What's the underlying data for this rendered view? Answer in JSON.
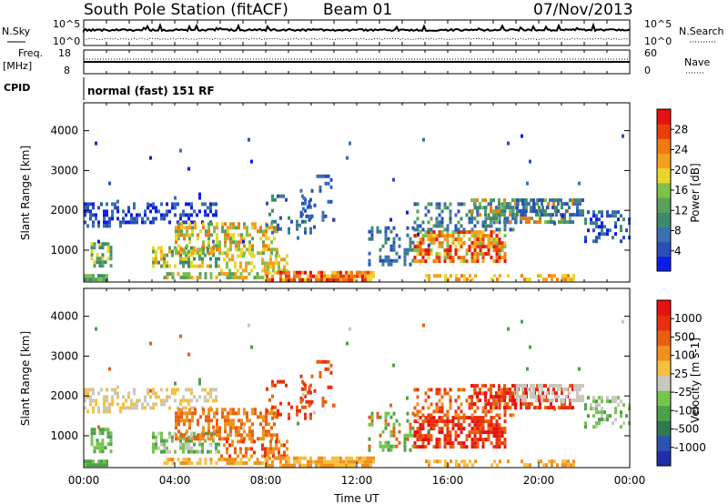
{
  "header": {
    "station": "South Pole Station (fitACF)",
    "beam": "Beam 01",
    "date": "07/Nov/2013"
  },
  "top_panels": {
    "nsky_label": "N.Sky",
    "nsky_ticks": [
      "10^5",
      "10^0"
    ],
    "nsearch_label": "N.Search",
    "nsearch_ticks": [
      "10^5",
      "10^0"
    ],
    "freq_label_1": "Freq.",
    "freq_label_2": "[MHz]",
    "freq_ticks": [
      "18",
      "8"
    ],
    "nave_label": "Nave",
    "nave_ticks": [
      "60",
      "0"
    ],
    "cpid_label": "CPID",
    "cpid_text": "normal (fast) 151 RF"
  },
  "colors": {
    "power_scale": [
      "#0a1ee8",
      "#2a4dbb",
      "#3a6fb0",
      "#3d8a6c",
      "#5aa05c",
      "#7fc04a",
      "#e8d62a",
      "#f5a020",
      "#f07a10",
      "#e84008",
      "#e81010"
    ],
    "velocity_scale": [
      "#1e2ea8",
      "#2a52b0",
      "#2f7a52",
      "#4fa04a",
      "#76c450",
      "#c8c8c0",
      "#f5c040",
      "#f09020",
      "#e86010",
      "#e83010",
      "#e81010"
    ]
  },
  "chart_data": [
    {
      "type": "heatmap",
      "name": "power",
      "xlabel": "",
      "ylabel": "Slant Range [km]",
      "yticks": [
        "1000",
        "2000",
        "3000",
        "4000"
      ],
      "ylim": [
        200,
        4700
      ],
      "xlim_hours": [
        0,
        24
      ],
      "colorbar": {
        "label": "Power [dB]",
        "ticks": [
          "4",
          "8",
          "12",
          "16",
          "20",
          "24",
          "28"
        ],
        "range": [
          0,
          32
        ]
      }
    },
    {
      "type": "heatmap",
      "name": "velocity",
      "xlabel": "Time UT",
      "ylabel": "Slant Range [km]",
      "yticks": [
        "1000",
        "2000",
        "3000",
        "4000"
      ],
      "ylim": [
        200,
        4700
      ],
      "xticks": [
        "00:00",
        "04:00",
        "08:00",
        "12:00",
        "16:00",
        "20:00",
        "00:00"
      ],
      "xlim_hours": [
        0,
        24
      ],
      "colorbar": {
        "label": "Velocity [m s-1]",
        "ticks": [
          "1000",
          "500",
          "100",
          "25",
          "-25",
          "-100",
          "-500",
          "-1000"
        ]
      }
    }
  ]
}
